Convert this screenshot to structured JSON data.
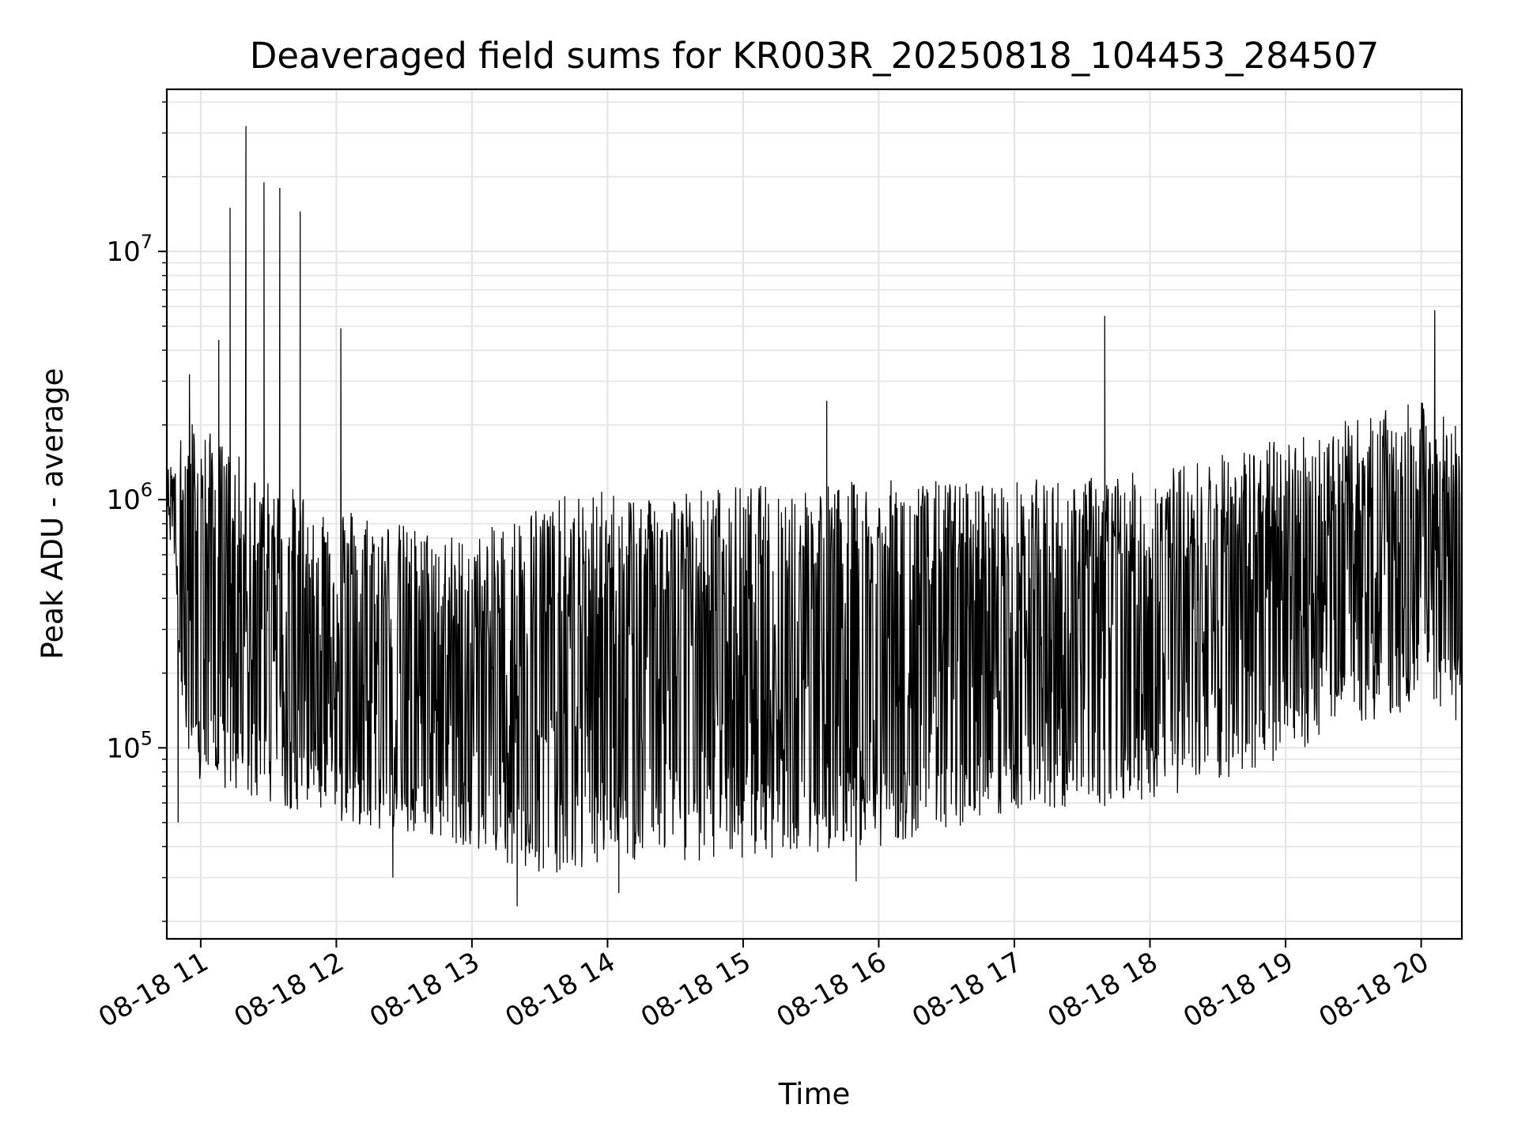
{
  "chart_data": {
    "type": "line",
    "title": "Deaveraged field sums for KR003R_20250818_104453_284507",
    "xlabel": "Time",
    "ylabel": "Peak ADU - average",
    "x_axis": {
      "kind": "time",
      "date": "2025-08-18",
      "range": [
        "10:45",
        "20:18"
      ],
      "ticks": [
        "11:00",
        "12:00",
        "13:00",
        "14:00",
        "15:00",
        "16:00",
        "17:00",
        "18:00",
        "19:00",
        "20:00"
      ],
      "tick_labels": [
        "08-18 11",
        "08-18 12",
        "08-18 13",
        "08-18 14",
        "08-18 15",
        "08-18 16",
        "08-18 17",
        "08-18 18",
        "08-18 19",
        "08-18 20"
      ],
      "tick_label_rotation": "30deg"
    },
    "y_axis": {
      "scale": "log",
      "range": [
        17000,
        45000000
      ],
      "major_ticks": [
        100000,
        1000000,
        10000000
      ],
      "tick_labels": [
        {
          "base": "10",
          "exp": "5"
        },
        {
          "base": "10",
          "exp": "6"
        },
        {
          "base": "10",
          "exp": "7"
        }
      ]
    },
    "grid": "on (major and minor)",
    "legend": "none",
    "series": [
      {
        "color": "#000000",
        "envelope_hourly": [
          {
            "time": "10:45",
            "upper": 1300000,
            "lower": 1000000
          },
          {
            "time": "10:55",
            "upper": 2200000,
            "lower": 70000
          },
          {
            "time": "11:30",
            "upper": 1200000,
            "lower": 60000
          },
          {
            "time": "12:00",
            "upper": 1000000,
            "lower": 50000
          },
          {
            "time": "12:30",
            "upper": 800000,
            "lower": 45000
          },
          {
            "time": "13:00",
            "upper": 700000,
            "lower": 40000
          },
          {
            "time": "13:30",
            "upper": 1000000,
            "lower": 30000
          },
          {
            "time": "14:00",
            "upper": 1100000,
            "lower": 35000
          },
          {
            "time": "15:00",
            "upper": 1150000,
            "lower": 35000
          },
          {
            "time": "16:00",
            "upper": 1200000,
            "lower": 40000
          },
          {
            "time": "17:00",
            "upper": 1200000,
            "lower": 55000
          },
          {
            "time": "18:00",
            "upper": 1300000,
            "lower": 60000
          },
          {
            "time": "19:00",
            "upper": 1800000,
            "lower": 90000
          },
          {
            "time": "20:00",
            "upper": 2500000,
            "lower": 150000
          },
          {
            "time": "20:18",
            "upper": 2000000,
            "lower": 120000
          }
        ],
        "spikes": [
          {
            "time": "10:55",
            "y": 3200000
          },
          {
            "time": "11:08",
            "y": 4400000
          },
          {
            "time": "11:13",
            "y": 15000000
          },
          {
            "time": "11:20",
            "y": 32000000
          },
          {
            "time": "11:28",
            "y": 19000000
          },
          {
            "time": "11:35",
            "y": 18000000
          },
          {
            "time": "11:44",
            "y": 14500000
          },
          {
            "time": "12:02",
            "y": 4900000
          },
          {
            "time": "15:37",
            "y": 2500000
          },
          {
            "time": "17:40",
            "y": 5500000
          },
          {
            "time": "20:06",
            "y": 5800000
          }
        ],
        "dips": [
          {
            "time": "10:50",
            "y": 50000
          },
          {
            "time": "12:25",
            "y": 30000
          },
          {
            "time": "13:20",
            "y": 23000
          },
          {
            "time": "14:05",
            "y": 26000
          },
          {
            "time": "15:50",
            "y": 29000
          }
        ]
      }
    ]
  }
}
